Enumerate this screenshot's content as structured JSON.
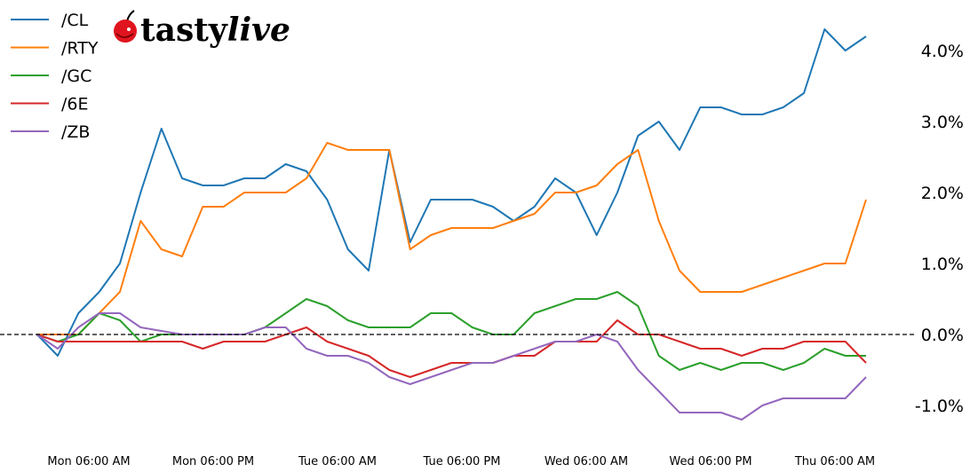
{
  "logo": {
    "brand_text": "tastylive",
    "part1": "tasty",
    "part2": "live"
  },
  "chart_data": {
    "type": "line",
    "title": "",
    "xlabel": "",
    "ylabel": "",
    "y_axis_side": "right",
    "y_ticks": [
      -1,
      0,
      1,
      2,
      3,
      4
    ],
    "y_tick_labels": [
      "-1.0%",
      "0.0%",
      "1.0%",
      "2.0%",
      "3.0%",
      "4.0%"
    ],
    "ylim": [
      -1.5,
      4.5
    ],
    "x_tick_labels": [
      "Mon 06:00 AM",
      "Mon 06:00 PM",
      "Tue 06:00 AM",
      "Tue 06:00 PM",
      "Wed 06:00 AM",
      "Wed 06:00 PM",
      "Thu 06:00 AM"
    ],
    "x_ticks": [
      "Mon 06:00",
      "Mon 18:00",
      "Tue 06:00",
      "Tue 18:00",
      "Wed 06:00",
      "Wed 18:00",
      "Thu 06:00"
    ],
    "reference_line": {
      "y": 0,
      "style": "dashed",
      "color": "#000000"
    },
    "grid": false,
    "legend_placement": "top-left",
    "x": [
      "Mon 01:00",
      "Mon 03:00",
      "Mon 05:00",
      "Mon 07:00",
      "Mon 09:00",
      "Mon 11:00",
      "Mon 13:00",
      "Mon 15:00",
      "Mon 17:00",
      "Mon 19:00",
      "Mon 21:00",
      "Mon 23:00",
      "Tue 01:00",
      "Tue 03:00",
      "Tue 05:00",
      "Tue 07:00",
      "Tue 09:00",
      "Tue 11:00",
      "Tue 13:00",
      "Tue 15:00",
      "Tue 17:00",
      "Tue 19:00",
      "Tue 21:00",
      "Tue 23:00",
      "Wed 01:00",
      "Wed 03:00",
      "Wed 05:00",
      "Wed 07:00",
      "Wed 09:00",
      "Wed 11:00",
      "Wed 13:00",
      "Wed 15:00",
      "Wed 17:00",
      "Wed 19:00",
      "Wed 21:00",
      "Wed 23:00",
      "Thu 01:00",
      "Thu 03:00",
      "Thu 05:00",
      "Thu 07:00",
      "Thu 09:00"
    ],
    "series": [
      {
        "name": "/CL",
        "color": "#1f77b4",
        "values": [
          0,
          -0.3,
          0.3,
          0.6,
          1.0,
          2.0,
          2.9,
          2.2,
          2.1,
          2.1,
          2.2,
          2.2,
          2.4,
          2.3,
          1.9,
          1.2,
          0.9,
          2.6,
          1.3,
          1.9,
          1.9,
          1.9,
          1.8,
          1.6,
          1.8,
          2.2,
          2.0,
          1.4,
          2.0,
          2.8,
          3.0,
          2.6,
          3.2,
          3.2,
          3.1,
          3.1,
          3.2,
          3.4,
          4.3,
          4.0,
          4.2
        ]
      },
      {
        "name": "/RTY",
        "color": "#ff7f0e",
        "values": [
          0,
          0,
          0,
          0.3,
          0.6,
          1.6,
          1.2,
          1.1,
          1.8,
          1.8,
          2.0,
          2.0,
          2.0,
          2.2,
          2.7,
          2.6,
          2.6,
          2.6,
          1.2,
          1.4,
          1.5,
          1.5,
          1.5,
          1.6,
          1.7,
          2.0,
          2.0,
          2.1,
          2.4,
          2.6,
          1.6,
          0.9,
          0.6,
          0.6,
          0.6,
          0.7,
          0.8,
          0.9,
          1.0,
          1.0,
          1.9
        ]
      },
      {
        "name": "/GC",
        "color": "#2ca02c",
        "values": [
          0,
          -0.1,
          0,
          0.3,
          0.2,
          -0.1,
          0,
          0,
          0,
          0,
          0,
          0.1,
          0.3,
          0.5,
          0.4,
          0.2,
          0.1,
          0.1,
          0.1,
          0.3,
          0.3,
          0.1,
          0,
          0,
          0.3,
          0.4,
          0.5,
          0.5,
          0.6,
          0.4,
          -0.3,
          -0.5,
          -0.4,
          -0.5,
          -0.4,
          -0.4,
          -0.5,
          -0.4,
          -0.2,
          -0.3,
          -0.3
        ]
      },
      {
        "name": "/6E",
        "color": "#d62728",
        "values": [
          0,
          -0.1,
          -0.1,
          -0.1,
          -0.1,
          -0.1,
          -0.1,
          -0.1,
          -0.2,
          -0.1,
          -0.1,
          -0.1,
          0,
          0.1,
          -0.1,
          -0.2,
          -0.3,
          -0.5,
          -0.6,
          -0.5,
          -0.4,
          -0.4,
          -0.4,
          -0.3,
          -0.3,
          -0.1,
          -0.1,
          -0.1,
          0.2,
          0,
          0,
          -0.1,
          -0.2,
          -0.2,
          -0.3,
          -0.2,
          -0.2,
          -0.1,
          -0.1,
          -0.1,
          -0.4
        ]
      },
      {
        "name": "/ZB",
        "color": "#9467bd",
        "values": [
          0,
          -0.2,
          0.1,
          0.3,
          0.3,
          0.1,
          0.05,
          0,
          0,
          0,
          0,
          0.1,
          0.1,
          -0.2,
          -0.3,
          -0.3,
          -0.4,
          -0.6,
          -0.7,
          -0.6,
          -0.5,
          -0.4,
          -0.4,
          -0.3,
          -0.2,
          -0.1,
          -0.1,
          0,
          -0.1,
          -0.5,
          -0.8,
          -1.1,
          -1.1,
          -1.1,
          -1.2,
          -1.0,
          -0.9,
          -0.9,
          -0.9,
          -0.9,
          -0.6
        ]
      }
    ]
  }
}
